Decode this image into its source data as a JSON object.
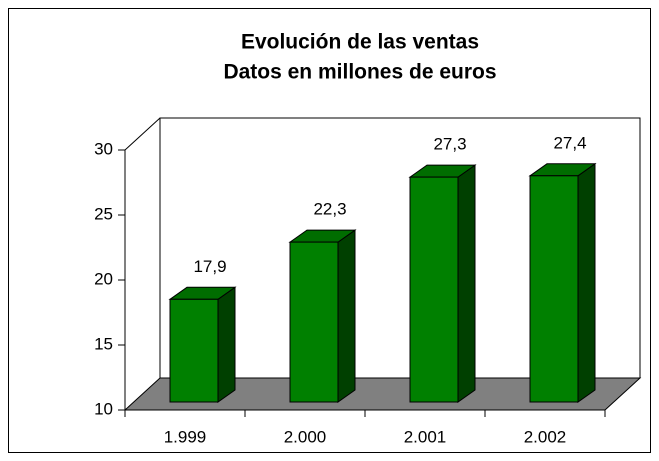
{
  "chart_data": {
    "type": "bar3d",
    "title": "Evolución de las ventas",
    "subtitle": "Datos en millones de euros",
    "categories": [
      "1.999",
      "2.000",
      "2.001",
      "2.002"
    ],
    "values": [
      17.9,
      22.3,
      27.3,
      27.4
    ],
    "value_labels": [
      "17,9",
      "22,3",
      "27,3",
      "27,4"
    ],
    "color": "#008000",
    "ylim": [
      10,
      30
    ],
    "yticks": [
      10,
      15,
      20,
      25,
      30
    ]
  }
}
